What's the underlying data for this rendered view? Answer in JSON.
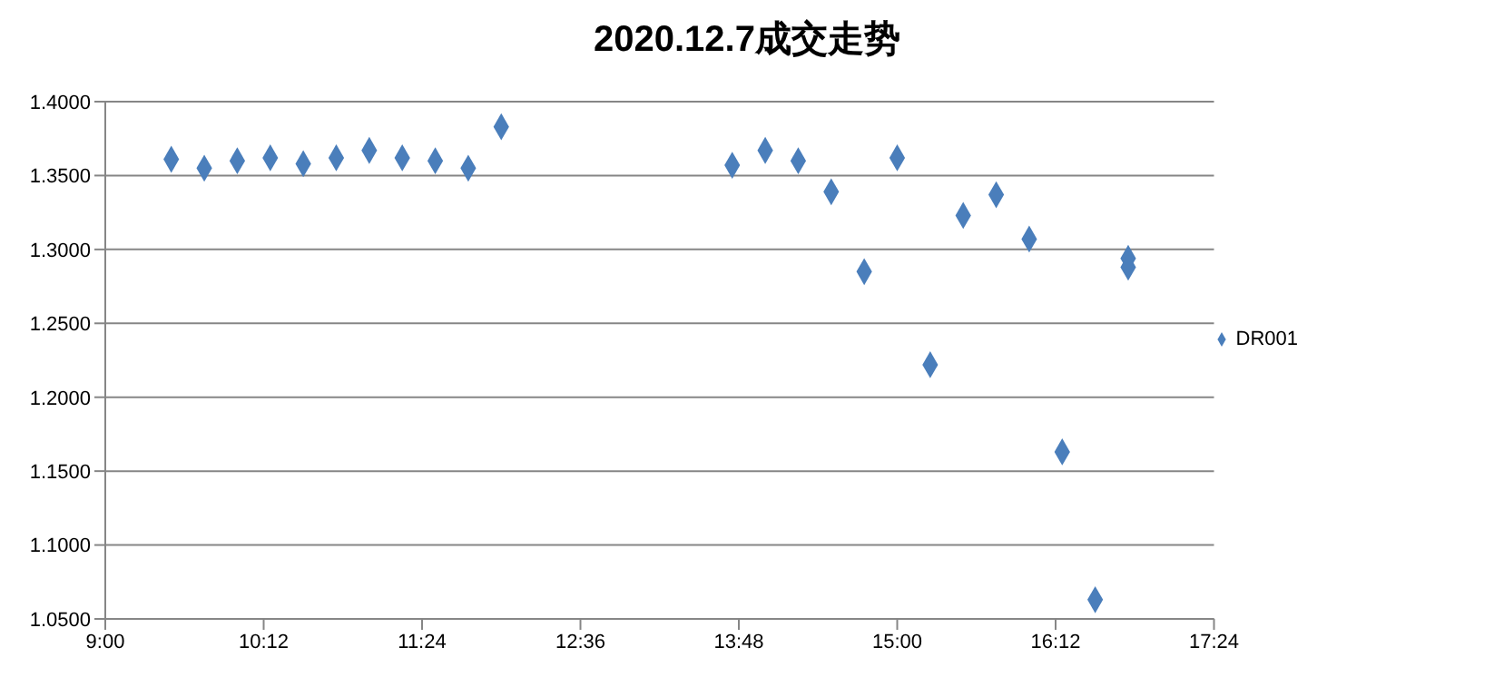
{
  "chart_data": {
    "type": "scatter",
    "title": "2020.12.7成交走势",
    "x": [
      9.5,
      9.75,
      10,
      10.25,
      10.5,
      10.75,
      11,
      11.25,
      11.5,
      11.75,
      12,
      13.75,
      14,
      14.25,
      14.5,
      14.75,
      15,
      15.25,
      15.5,
      15.75,
      16,
      16.25,
      16.5,
      16.75,
      16.75
    ],
    "series": [
      {
        "name": "DR001",
        "color": "#4a7ebb",
        "values": [
          1.361,
          1.355,
          1.36,
          1.362,
          1.358,
          1.362,
          1.367,
          1.362,
          1.36,
          1.355,
          1.383,
          1.357,
          1.367,
          1.36,
          1.339,
          1.285,
          1.362,
          1.222,
          1.323,
          1.337,
          1.307,
          1.163,
          1.063,
          1.294,
          1.288
        ]
      }
    ],
    "xlim": [
      9,
      17.4
    ],
    "xticks": [
      {
        "value": 9,
        "label": "9:00"
      },
      {
        "value": 10.2,
        "label": "10:12"
      },
      {
        "value": 11.4,
        "label": "11:24"
      },
      {
        "value": 12.6,
        "label": "12:36"
      },
      {
        "value": 13.8,
        "label": "13:48"
      },
      {
        "value": 15,
        "label": "15:00"
      },
      {
        "value": 16.2,
        "label": "16:12"
      },
      {
        "value": 17.4,
        "label": "17:24"
      }
    ],
    "ylim": [
      1.05,
      1.4
    ],
    "yticks": [
      {
        "value": 1.05,
        "label": "1.0500"
      },
      {
        "value": 1.1,
        "label": "1.1000"
      },
      {
        "value": 1.15,
        "label": "1.1500"
      },
      {
        "value": 1.2,
        "label": "1.2000"
      },
      {
        "value": 1.25,
        "label": "1.2500"
      },
      {
        "value": 1.3,
        "label": "1.3000"
      },
      {
        "value": 1.35,
        "label": "1.3500"
      },
      {
        "value": 1.4,
        "label": "1.4000"
      }
    ],
    "grid": "y",
    "legend": "right",
    "marker": "diamond"
  }
}
